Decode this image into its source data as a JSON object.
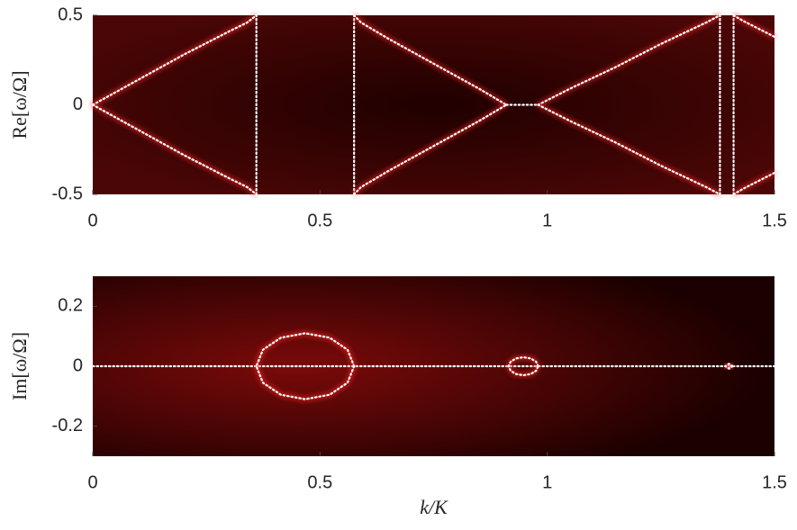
{
  "chart_data": [
    {
      "type": "line",
      "ylabel": "Re[ω/Ω]",
      "xlim": [
        0,
        1.5
      ],
      "xticks": [
        0,
        0.5,
        1,
        1.5
      ],
      "ylim": [
        -0.5,
        0.5
      ],
      "yticks": [
        0.5,
        0,
        -0.5
      ],
      "color": "#ffffff",
      "series": [
        {
          "x": [
            0,
            0.1,
            0.2,
            0.3,
            0.34,
            0.36
          ],
          "values": [
            0,
            0.14,
            0.28,
            0.41,
            0.46,
            0.5
          ]
        },
        {
          "x": [
            0,
            0.1,
            0.2,
            0.3,
            0.34,
            0.36
          ],
          "values": [
            0,
            -0.14,
            -0.28,
            -0.41,
            -0.46,
            -0.5
          ]
        },
        {
          "x": [
            0.36,
            0.36
          ],
          "values": [
            -0.5,
            0.5
          ]
        },
        {
          "x": [
            0.575,
            0.575
          ],
          "values": [
            -0.5,
            0.5
          ]
        },
        {
          "x": [
            0.575,
            0.59,
            0.65,
            0.75,
            0.85,
            0.91
          ],
          "values": [
            0.5,
            0.46,
            0.37,
            0.23,
            0.09,
            0
          ]
        },
        {
          "x": [
            0.575,
            0.59,
            0.65,
            0.75,
            0.85,
            0.91
          ],
          "values": [
            -0.5,
            -0.46,
            -0.37,
            -0.23,
            -0.09,
            0
          ]
        },
        {
          "x": [
            0.91,
            0.98
          ],
          "values": [
            0,
            0
          ]
        },
        {
          "x": [
            0.98,
            1.05,
            1.15,
            1.25,
            1.35,
            1.38
          ],
          "values": [
            0,
            0.09,
            0.21,
            0.34,
            0.46,
            0.5
          ]
        },
        {
          "x": [
            0.98,
            1.05,
            1.15,
            1.25,
            1.35,
            1.38
          ],
          "values": [
            0,
            -0.09,
            -0.21,
            -0.34,
            -0.46,
            -0.5
          ]
        },
        {
          "x": [
            1.38,
            1.38
          ],
          "values": [
            -0.5,
            0.5
          ]
        },
        {
          "x": [
            1.41,
            1.41
          ],
          "values": [
            -0.5,
            0.5
          ]
        },
        {
          "x": [
            1.41,
            1.43,
            1.5
          ],
          "values": [
            0.5,
            0.47,
            0.38
          ]
        },
        {
          "x": [
            1.41,
            1.43,
            1.5
          ],
          "values": [
            -0.5,
            -0.47,
            -0.38
          ]
        }
      ]
    },
    {
      "type": "line",
      "ylabel": "Im[ω/Ω]",
      "xlabel": "k/K",
      "xlim": [
        0,
        1.5
      ],
      "xticks": [
        0,
        0.5,
        1,
        1.5
      ],
      "ylim": [
        -0.3,
        0.3
      ],
      "yticks": [
        0.2,
        0,
        -0.2
      ],
      "color": "#ffffff",
      "series": [
        {
          "x": [
            0,
            1.5
          ],
          "values": [
            0,
            0
          ]
        },
        {
          "x": [
            0.575,
            0.5606,
            0.5213,
            0.4675,
            0.4138,
            0.3744,
            0.36,
            0.3744,
            0.4138,
            0.4675,
            0.5213,
            0.5606,
            0.575
          ],
          "values": [
            0,
            0.055,
            0.095,
            0.11,
            0.095,
            0.055,
            0,
            -0.055,
            -0.095,
            -0.11,
            -0.095,
            -0.055,
            0
          ]
        },
        {
          "x": [
            0.98,
            0.9756,
            0.9638,
            0.9475,
            0.9313,
            0.9194,
            0.915,
            0.9194,
            0.9313,
            0.9475,
            0.9638,
            0.9756,
            0.98
          ],
          "values": [
            0,
            0.015,
            0.026,
            0.03,
            0.026,
            0.015,
            0,
            -0.015,
            -0.026,
            -0.03,
            -0.026,
            -0.015,
            0
          ]
        },
        {
          "x": [
            1.408,
            1.4,
            1.392,
            1.4,
            1.408
          ],
          "values": [
            0,
            0.008,
            0,
            -0.008,
            0
          ]
        }
      ]
    }
  ]
}
